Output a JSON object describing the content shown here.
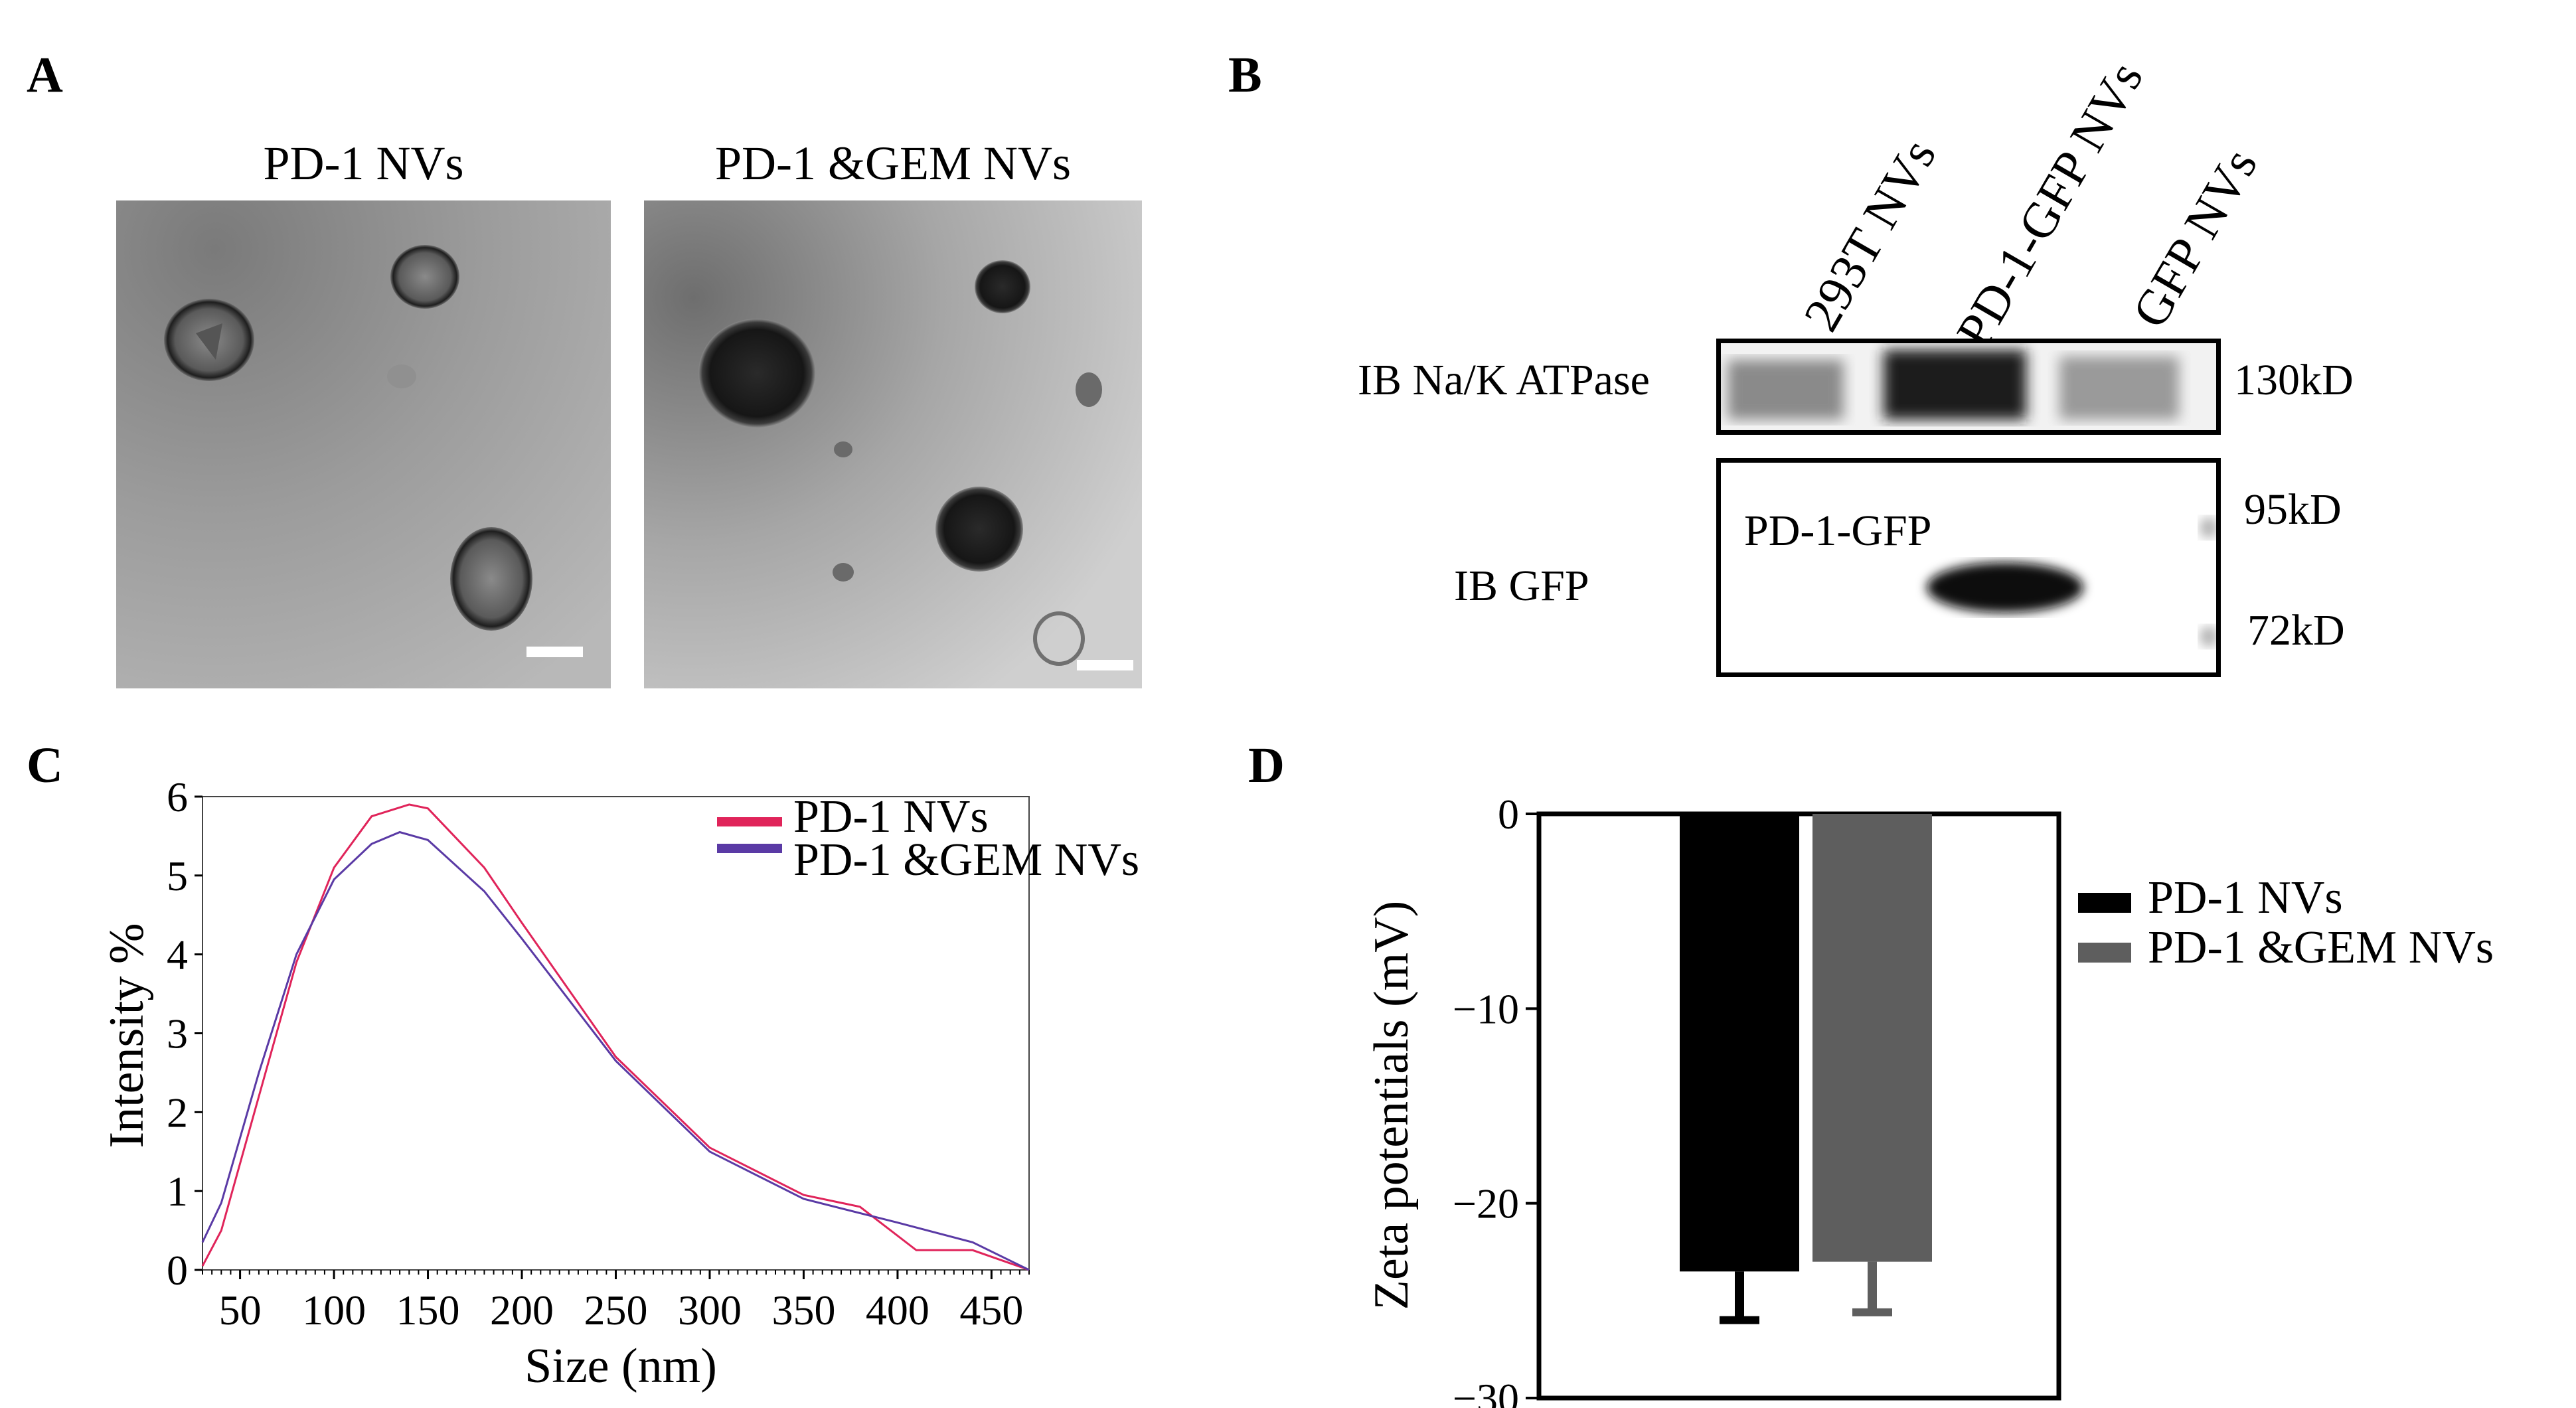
{
  "panels": {
    "a": "A",
    "b": "B",
    "c": "C",
    "d": "D"
  },
  "panel_a": {
    "image1_title": "PD-1 NVs",
    "image2_title": "PD-1 &GEM NVs"
  },
  "panel_b": {
    "lanes": [
      "293T NVs",
      "PD-1-GFP NVs",
      "GFP NVs"
    ],
    "blot1_label": "IB Na/K ATPase",
    "blot2_label": "IB GFP",
    "blot2_band_label": "PD-1-GFP",
    "markers": {
      "m130": "130kD",
      "m95": "95kD",
      "m72": "72kD"
    }
  },
  "chart_data": [
    {
      "type": "line",
      "panel": "C",
      "xlabel": "Size (nm)",
      "ylabel": "Intensity %",
      "xlim": [
        30,
        470
      ],
      "ylim": [
        0,
        6
      ],
      "xticks": [
        50,
        100,
        150,
        200,
        250,
        300,
        350,
        400,
        450
      ],
      "yticks": [
        0,
        1,
        2,
        3,
        4,
        5,
        6
      ],
      "legend_position": "top-right",
      "series": [
        {
          "name": "PD-1 NVs",
          "color": "#e0245a",
          "x": [
            30,
            40,
            60,
            80,
            100,
            120,
            140,
            150,
            180,
            200,
            250,
            300,
            350,
            380,
            410,
            440,
            470
          ],
          "y": [
            0.05,
            0.5,
            2.2,
            3.9,
            5.1,
            5.75,
            5.9,
            5.85,
            5.1,
            4.4,
            2.7,
            1.55,
            0.95,
            0.8,
            0.25,
            0.25,
            0.0
          ]
        },
        {
          "name": "PD-1 &GEM NVs",
          "color": "#5a3aa5",
          "x": [
            30,
            40,
            60,
            80,
            100,
            120,
            135,
            150,
            180,
            200,
            250,
            300,
            350,
            400,
            440,
            470
          ],
          "y": [
            0.35,
            0.85,
            2.5,
            4.0,
            4.95,
            5.4,
            5.55,
            5.45,
            4.8,
            4.2,
            2.65,
            1.5,
            0.9,
            0.6,
            0.35,
            0.0
          ]
        }
      ]
    },
    {
      "type": "bar",
      "panel": "D",
      "ylabel": "Zeta potentials (mV)",
      "ylim": [
        -30,
        0
      ],
      "yticks": [
        0,
        -10,
        -20,
        -30
      ],
      "ytick_labels": [
        "0",
        "−10",
        "−20",
        "−30"
      ],
      "legend_position": "right",
      "series": [
        {
          "name": "PD-1 NVs",
          "value": -23.5,
          "error": 2.5,
          "color": "#000000"
        },
        {
          "name": "PD-1 &GEM NVs",
          "value": -23.0,
          "error": 2.6,
          "color": "#5e5e5e"
        }
      ]
    }
  ]
}
